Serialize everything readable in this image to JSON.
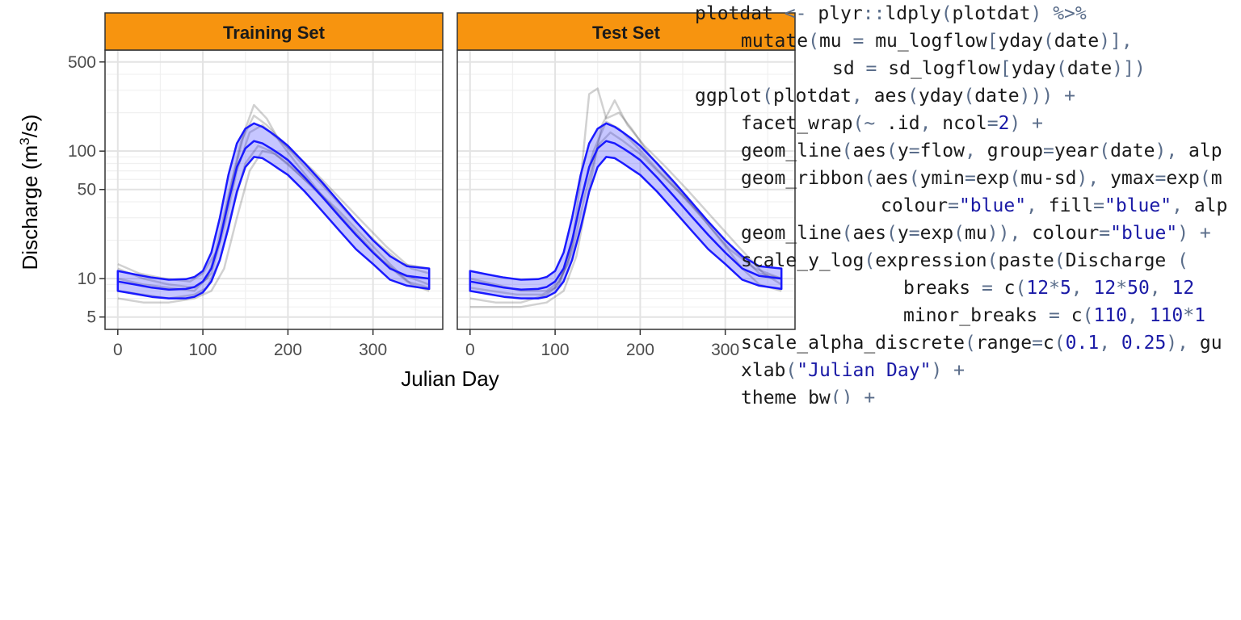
{
  "chart_data": {
    "type": "line",
    "ylabel_main": "Discharge (m",
    "ylabel_sup": "3",
    "ylabel_tail": "/s)",
    "xlabel": "Julian Day",
    "y_scale": "log10",
    "ylim": [
      4,
      620
    ],
    "xlim": [
      -15,
      382
    ],
    "y_ticks": [
      5,
      10,
      50,
      100,
      500
    ],
    "y_tick_labels": [
      "5",
      "10",
      "50",
      "100",
      "500"
    ],
    "y_minor": [
      6,
      7,
      8,
      9,
      20,
      30,
      40,
      60,
      70,
      80,
      90,
      200,
      300,
      400
    ],
    "x_ticks": [
      0,
      100,
      200,
      300
    ],
    "x_tick_labels": [
      "0",
      "100",
      "200",
      "300"
    ],
    "strip_color": "#f7940f",
    "band_color": "#1a1aff",
    "facets": [
      {
        "label": "Training Set",
        "mean": {
          "x": [
            0,
            20,
            40,
            60,
            80,
            90,
            100,
            110,
            120,
            130,
            140,
            150,
            160,
            170,
            180,
            190,
            200,
            220,
            240,
            260,
            280,
            300,
            320,
            340,
            366
          ],
          "y": [
            9.5,
            9,
            8.5,
            8.2,
            8.3,
            8.6,
            9.5,
            12,
            20,
            40,
            75,
            105,
            120,
            115,
            105,
            95,
            85,
            62,
            44,
            31,
            22,
            16,
            12,
            10.5,
            10
          ]
        },
        "upper": {
          "x": [
            0,
            20,
            40,
            60,
            80,
            90,
            100,
            110,
            120,
            130,
            140,
            150,
            160,
            170,
            180,
            190,
            200,
            220,
            240,
            260,
            280,
            300,
            320,
            340,
            366
          ],
          "y": [
            11.5,
            10.8,
            10.2,
            9.8,
            9.9,
            10.3,
            11.5,
            16,
            30,
            65,
            115,
            150,
            165,
            155,
            140,
            125,
            110,
            80,
            57,
            40,
            28,
            20,
            15,
            12.5,
            12
          ]
        },
        "lower": {
          "x": [
            0,
            20,
            40,
            60,
            80,
            90,
            100,
            110,
            120,
            130,
            140,
            150,
            160,
            170,
            180,
            190,
            200,
            220,
            240,
            260,
            280,
            300,
            320,
            340,
            366
          ],
          "y": [
            8,
            7.6,
            7.2,
            7,
            7,
            7.2,
            7.8,
            9.5,
            14,
            25,
            48,
            75,
            90,
            88,
            80,
            72,
            65,
            48,
            34,
            24,
            17,
            13,
            9.8,
            8.8,
            8.3
          ]
        },
        "traces": [
          {
            "x": [
              0,
              30,
              60,
              90,
              105,
              120,
              135,
              150,
              160,
              175,
              190,
              210,
              240,
              270,
              300,
              330,
              366
            ],
            "y": [
              12,
              10,
              9,
              8.5,
              10,
              20,
              60,
              150,
              230,
              180,
              120,
              80,
              45,
              26,
              16,
              11,
              9
            ]
          },
          {
            "x": [
              0,
              30,
              60,
              90,
              105,
              120,
              135,
              150,
              165,
              180,
              200,
              225,
              250,
              280,
              310,
              340,
              366
            ],
            "y": [
              8,
              7.5,
              7,
              7.5,
              8.5,
              14,
              35,
              80,
              110,
              100,
              80,
              55,
              38,
              23,
              14,
              9.5,
              8.5
            ]
          },
          {
            "x": [
              0,
              30,
              60,
              90,
              110,
              125,
              140,
              155,
              170,
              185,
              205,
              230,
              255,
              285,
              315,
              345,
              366
            ],
            "y": [
              10,
              9,
              8.5,
              8,
              11,
              25,
              70,
              140,
              160,
              130,
              100,
              70,
              47,
              29,
              18,
              12,
              11
            ]
          },
          {
            "x": [
              0,
              25,
              55,
              85,
              100,
              115,
              130,
              145,
              160,
              175,
              195,
              220,
              245,
              275,
              305,
              335,
              366
            ],
            "y": [
              13,
              11,
              10,
              9.5,
              11,
              16,
              45,
              120,
              190,
              160,
              115,
              75,
              50,
              30,
              19,
              13,
              12
            ]
          },
          {
            "x": [
              0,
              30,
              60,
              90,
              110,
              125,
              140,
              155,
              170,
              185,
              200,
              230,
              260,
              290,
              320,
              345,
              366
            ],
            "y": [
              7,
              6.5,
              6.5,
              7,
              8,
              12,
              30,
              70,
              100,
              95,
              78,
              52,
              34,
              21,
              13,
              9,
              8
            ]
          }
        ]
      },
      {
        "label": "Test Set",
        "mean": {
          "x": [
            0,
            20,
            40,
            60,
            80,
            90,
            100,
            110,
            120,
            130,
            140,
            150,
            160,
            170,
            180,
            190,
            200,
            220,
            240,
            260,
            280,
            300,
            320,
            340,
            366
          ],
          "y": [
            9.5,
            9,
            8.5,
            8.2,
            8.3,
            8.6,
            9.5,
            12,
            20,
            40,
            75,
            105,
            120,
            115,
            105,
            95,
            85,
            62,
            44,
            31,
            22,
            16,
            12,
            10.5,
            10
          ]
        },
        "upper": {
          "x": [
            0,
            20,
            40,
            60,
            80,
            90,
            100,
            110,
            120,
            130,
            140,
            150,
            160,
            170,
            180,
            190,
            200,
            220,
            240,
            260,
            280,
            300,
            320,
            340,
            366
          ],
          "y": [
            11.5,
            10.8,
            10.2,
            9.8,
            9.9,
            10.3,
            11.5,
            16,
            30,
            65,
            115,
            150,
            165,
            155,
            140,
            125,
            110,
            80,
            57,
            40,
            28,
            20,
            15,
            12.5,
            12
          ]
        },
        "lower": {
          "x": [
            0,
            20,
            40,
            60,
            80,
            90,
            100,
            110,
            120,
            130,
            140,
            150,
            160,
            170,
            180,
            190,
            200,
            220,
            240,
            260,
            280,
            300,
            320,
            340,
            366
          ],
          "y": [
            8,
            7.6,
            7.2,
            7,
            7,
            7.2,
            7.8,
            9.5,
            14,
            25,
            48,
            75,
            90,
            88,
            80,
            72,
            65,
            48,
            34,
            24,
            17,
            13,
            9.8,
            8.8,
            8.3
          ]
        },
        "traces": [
          {
            "x": [
              0,
              30,
              60,
              90,
              105,
              120,
              130,
              140,
              150,
              160,
              175,
              190,
              210,
              240,
              270,
              300,
              320,
              340,
              366
            ],
            "y": [
              7,
              6.5,
              6.5,
              7.5,
              9,
              18,
              60,
              280,
              310,
              180,
              200,
              150,
              95,
              55,
              32,
              18,
              12,
              9,
              8
            ]
          },
          {
            "x": [
              0,
              30,
              60,
              90,
              105,
              120,
              135,
              150,
              165,
              180,
              200,
              225,
              250,
              280,
              310,
              340,
              366
            ],
            "y": [
              10,
              9,
              8,
              8,
              9.5,
              16,
              45,
              110,
              140,
              120,
              95,
              65,
              45,
              28,
              17,
              11,
              10
            ]
          },
          {
            "x": [
              0,
              25,
              55,
              85,
              100,
              115,
              130,
              145,
              160,
              175,
              195,
              220,
              245,
              275,
              305,
              335,
              366
            ],
            "y": [
              8.5,
              8,
              7.5,
              7.5,
              8.5,
              13,
              40,
              100,
              170,
              150,
              110,
              72,
              48,
              29,
              17,
              12,
              10
            ]
          },
          {
            "x": [
              0,
              30,
              60,
              90,
              110,
              125,
              140,
              155,
              170,
              185,
              205,
              230,
              255,
              285,
              315,
              345,
              366
            ],
            "y": [
              6,
              6,
              6,
              6.5,
              8,
              15,
              50,
              160,
              250,
              160,
              110,
              75,
              50,
              30,
              18,
              11,
              9
            ]
          }
        ]
      }
    ]
  },
  "code_lines": [
    {
      "indent": 0,
      "text": "plotdat <- plyr::ldply(plotdat) %>%"
    },
    {
      "indent": 1,
      "text": "mutate(mu = mu_logflow[yday(date)],"
    },
    {
      "indent": 2,
      "text": "sd = sd_logflow[yday(date)])"
    },
    {
      "indent": 0,
      "text": "ggplot(plotdat, aes(yday(date))) +"
    },
    {
      "indent": 1,
      "text": "facet_wrap(~ .id, ncol=2) +"
    },
    {
      "indent": 1,
      "text": "geom_line(aes(y=flow, group=year(date), alp"
    },
    {
      "indent": 1,
      "text": "geom_ribbon(aes(ymin=exp(mu-sd), ymax=exp(m"
    },
    {
      "indent": 3,
      "text": "colour=\"blue\", fill=\"blue\", alp"
    },
    {
      "indent": 1,
      "text": "geom_line(aes(y=exp(mu)), colour=\"blue\") +"
    },
    {
      "indent": 1,
      "text": "scale_y_log10(expression(paste(\"Discharge ("
    },
    {
      "indent": 4,
      "text": "breaks = c(1:2*5, 1:2*50, 1:2"
    },
    {
      "indent": 4,
      "text": "minor_breaks = c(1:10, 1:10*1"
    },
    {
      "indent": 1,
      "text": "scale_alpha_discrete(range=c(0.1, 0.25), gu"
    },
    {
      "indent": 1,
      "text": "xlab(\"Julian Day\") +"
    },
    {
      "indent": 1,
      "text": "theme_bw() +"
    }
  ]
}
